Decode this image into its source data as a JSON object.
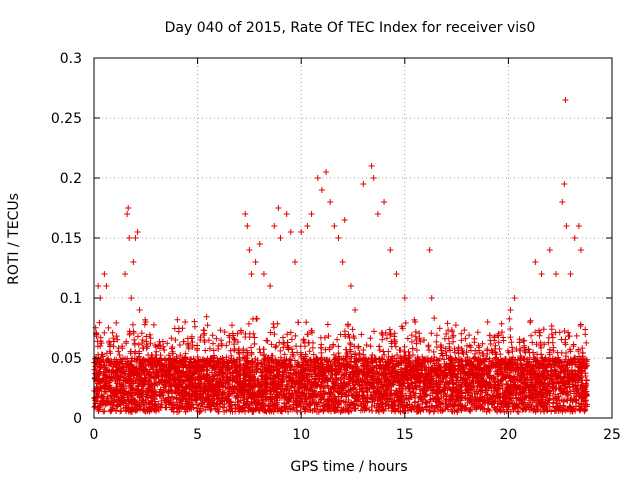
{
  "chart_data": {
    "type": "scatter",
    "title": "Day 040 of 2015, Rate Of TEC Index for receiver vis0",
    "xlabel": "GPS time / hours",
    "ylabel": "ROTI / TECUs",
    "xlim": [
      0,
      25
    ],
    "ylim": [
      0,
      0.3
    ],
    "xticks": [
      0,
      5,
      10,
      15,
      20,
      25
    ],
    "yticks": [
      0,
      0.05,
      0.1,
      0.15,
      0.2,
      0.25,
      0.3
    ],
    "xtick_labels": [
      "0",
      "5",
      "10",
      "15",
      "20",
      "25"
    ],
    "ytick_labels": [
      "0",
      "0.05",
      "0.1",
      "0.15",
      "0.2",
      "0.25",
      "0.3"
    ],
    "grid": true,
    "marker": "+",
    "color": "#e00000",
    "series": [
      {
        "name": "vis0",
        "points": [
          [
            0.1,
            0.07
          ],
          [
            0.2,
            0.11
          ],
          [
            0.3,
            0.1
          ],
          [
            0.5,
            0.12
          ],
          [
            0.6,
            0.11
          ],
          [
            0.3,
            0.06
          ],
          [
            1.5,
            0.12
          ],
          [
            1.6,
            0.17
          ],
          [
            1.65,
            0.175
          ],
          [
            1.7,
            0.15
          ],
          [
            2.0,
            0.15
          ],
          [
            2.1,
            0.155
          ],
          [
            1.9,
            0.13
          ],
          [
            2.2,
            0.09
          ],
          [
            2.5,
            0.08
          ],
          [
            1.8,
            0.1
          ],
          [
            3.1,
            0.06
          ],
          [
            4.4,
            0.08
          ],
          [
            6.0,
            0.06
          ],
          [
            6.2,
            0.05
          ],
          [
            6.8,
            0.065
          ],
          [
            7.3,
            0.17
          ],
          [
            7.4,
            0.16
          ],
          [
            7.5,
            0.14
          ],
          [
            7.6,
            0.12
          ],
          [
            7.8,
            0.13
          ],
          [
            8.0,
            0.145
          ],
          [
            8.2,
            0.12
          ],
          [
            8.5,
            0.11
          ],
          [
            8.7,
            0.16
          ],
          [
            8.9,
            0.175
          ],
          [
            9.0,
            0.15
          ],
          [
            9.3,
            0.17
          ],
          [
            9.5,
            0.155
          ],
          [
            9.7,
            0.13
          ],
          [
            10.0,
            0.155
          ],
          [
            10.3,
            0.16
          ],
          [
            10.5,
            0.17
          ],
          [
            10.8,
            0.2
          ],
          [
            11.0,
            0.19
          ],
          [
            11.2,
            0.205
          ],
          [
            11.4,
            0.18
          ],
          [
            11.6,
            0.16
          ],
          [
            11.8,
            0.15
          ],
          [
            12.0,
            0.13
          ],
          [
            12.1,
            0.165
          ],
          [
            12.4,
            0.11
          ],
          [
            12.6,
            0.09
          ],
          [
            13.0,
            0.195
          ],
          [
            13.4,
            0.21
          ],
          [
            13.5,
            0.2
          ],
          [
            13.7,
            0.17
          ],
          [
            14.0,
            0.18
          ],
          [
            14.3,
            0.14
          ],
          [
            14.6,
            0.12
          ],
          [
            15.0,
            0.1
          ],
          [
            15.5,
            0.08
          ],
          [
            16.2,
            0.14
          ],
          [
            16.3,
            0.1
          ],
          [
            17.0,
            0.07
          ],
          [
            18.0,
            0.06
          ],
          [
            19.0,
            0.08
          ],
          [
            20.1,
            0.09
          ],
          [
            20.3,
            0.1
          ],
          [
            21.3,
            0.13
          ],
          [
            21.6,
            0.12
          ],
          [
            22.0,
            0.14
          ],
          [
            22.3,
            0.12
          ],
          [
            22.6,
            0.18
          ],
          [
            22.7,
            0.195
          ],
          [
            22.75,
            0.265
          ],
          [
            22.8,
            0.16
          ],
          [
            23.0,
            0.12
          ],
          [
            23.2,
            0.15
          ],
          [
            23.4,
            0.16
          ],
          [
            23.5,
            0.14
          ]
        ]
      }
    ]
  }
}
